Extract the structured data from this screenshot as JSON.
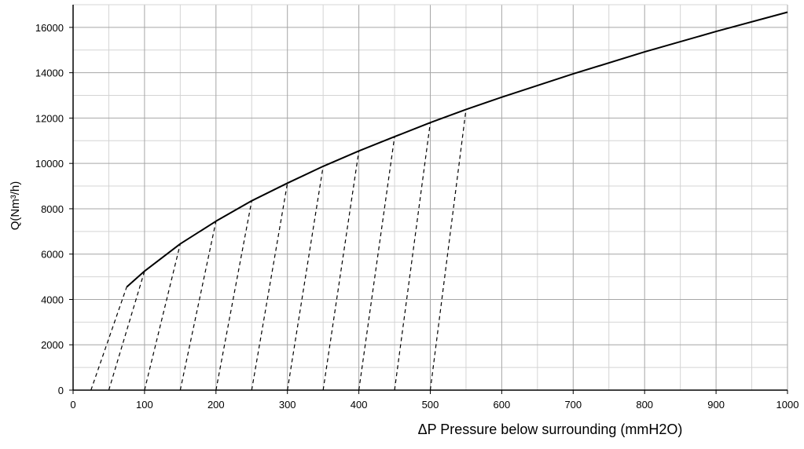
{
  "chart_data": {
    "type": "line",
    "xlabel": "ΔP  Pressure below surrounding (mmH2O)",
    "ylabel": "Q(Nm³/h)",
    "xlim": [
      0,
      1000
    ],
    "ylim": [
      0,
      17000
    ],
    "x_ticks": [
      0,
      100,
      200,
      300,
      400,
      500,
      600,
      700,
      800,
      900,
      1000
    ],
    "y_ticks": [
      0,
      2000,
      4000,
      6000,
      8000,
      10000,
      12000,
      14000,
      16000
    ],
    "x_ticks_display": [
      "0",
      "100",
      "200",
      "300",
      "400",
      "500",
      "600",
      "700",
      "800",
      "900",
      "1000"
    ],
    "y_ticks_display": [
      "0",
      "2000",
      "4000",
      "6000",
      "8000",
      "10000",
      "12000",
      "14000",
      "16000"
    ],
    "grid": true,
    "grid_minor_x_step": 50,
    "grid_minor_y_step": 1000,
    "series": [
      {
        "style": "solid",
        "x": [
          75,
          100,
          150,
          200,
          250,
          300,
          350,
          400,
          450,
          500,
          550,
          600,
          700,
          800,
          900,
          1000
        ],
        "y": [
          4550,
          5250,
          6450,
          7450,
          8350,
          9130,
          9870,
          10550,
          11180,
          11800,
          12380,
          12920,
          13950,
          14920,
          15820,
          16670
        ]
      }
    ],
    "dashed_lines": [
      {
        "x": [
          25,
          75
        ],
        "y": [
          0,
          4550
        ]
      },
      {
        "x": [
          50,
          100
        ],
        "y": [
          0,
          5250
        ]
      },
      {
        "x": [
          100,
          150
        ],
        "y": [
          0,
          6450
        ]
      },
      {
        "x": [
          150,
          200
        ],
        "y": [
          0,
          7450
        ]
      },
      {
        "x": [
          200,
          250
        ],
        "y": [
          0,
          8350
        ]
      },
      {
        "x": [
          250,
          300
        ],
        "y": [
          0,
          9130
        ]
      },
      {
        "x": [
          300,
          350
        ],
        "y": [
          0,
          9870
        ]
      },
      {
        "x": [
          350,
          400
        ],
        "y": [
          0,
          10550
        ]
      },
      {
        "x": [
          400,
          450
        ],
        "y": [
          0,
          11180
        ]
      },
      {
        "x": [
          450,
          500
        ],
        "y": [
          0,
          11800
        ]
      },
      {
        "x": [
          500,
          550
        ],
        "y": [
          0,
          12380
        ]
      }
    ],
    "colors": {
      "line": "#000000",
      "grid_major": "#a6a6a6",
      "grid_minor": "#d4d4d4"
    }
  }
}
